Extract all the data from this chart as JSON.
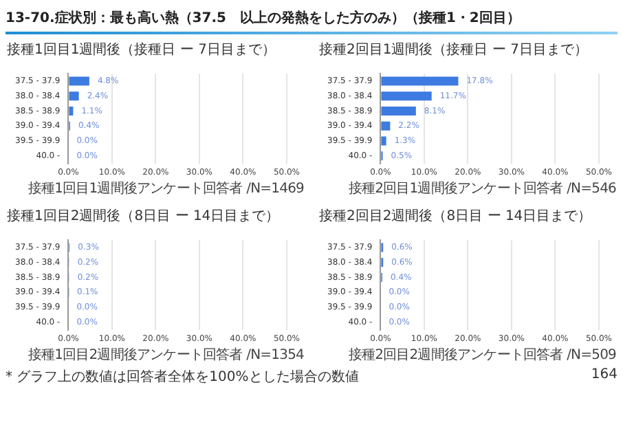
{
  "chart_data": [
    {
      "type": "other",
      "title": "13-70.症状別：最も高い熱（37.5　以上の発熱をした方のみ）（接種1・2回目）",
      "annotations": [
        "* グラフ上の数値は回答者全体を100%とした場合の数値",
        "164"
      ]
    },
    {
      "type": "bar",
      "orientation": "horizontal",
      "title": "接種1回目1週間後（接種日 ー 7日目まで）",
      "categories": [
        "37.5 - 37.9",
        "38.0 - 38.4",
        "38.5 - 38.9",
        "39.0 - 39.4",
        "39.5 - 39.9",
        "40.0 -"
      ],
      "values": [
        4.8,
        2.4,
        1.1,
        0.4,
        0.0,
        0.0
      ],
      "value_labels": [
        "4.8%",
        "2.4%",
        "1.1%",
        "0.4%",
        "0.0%",
        "0.0%"
      ],
      "color": "#3d7be0",
      "xlim": [
        0,
        50
      ],
      "xticks": [
        {
          "value": 0,
          "label": "0.0%"
        },
        {
          "value": 10,
          "label": "10.0%"
        },
        {
          "value": 20,
          "label": "20.0%"
        },
        {
          "value": 30,
          "label": "30.0%"
        },
        {
          "value": 40,
          "label": "40.0%"
        },
        {
          "value": 50,
          "label": "50.0%"
        }
      ],
      "grid": "x",
      "annotations": [
        "接種1回目1週間後アンケート回答者 /N=1469"
      ]
    },
    {
      "type": "bar",
      "orientation": "horizontal",
      "title": "接種2回目1週間後（接種日 ー 7日目まで）",
      "categories": [
        "37.5 - 37.9",
        "38.0 - 38.4",
        "38.5 - 38.9",
        "39.0 - 39.4",
        "39.5 - 39.9",
        "40.0 -"
      ],
      "values": [
        17.8,
        11.7,
        8.1,
        2.2,
        1.3,
        0.5
      ],
      "value_labels": [
        "17.8%",
        "11.7%",
        "8.1%",
        "2.2%",
        "1.3%",
        "0.5%"
      ],
      "color": "#3d7be0",
      "xlim": [
        0,
        50
      ],
      "xticks": [
        {
          "value": 0,
          "label": "0.0%"
        },
        {
          "value": 10,
          "label": "10.0%"
        },
        {
          "value": 20,
          "label": "20.0%"
        },
        {
          "value": 30,
          "label": "30.0%"
        },
        {
          "value": 40,
          "label": "40.0%"
        },
        {
          "value": 50,
          "label": "50.0%"
        }
      ],
      "grid": "x",
      "annotations": [
        "接種2回目1週間後アンケート回答者 /N=546"
      ]
    },
    {
      "type": "bar",
      "orientation": "horizontal",
      "title": "接種1回目2週間後（8日目 ー 14日目まで）",
      "categories": [
        "37.5 - 37.9",
        "38.0 - 38.4",
        "38.5 - 38.9",
        "39.0 - 39.4",
        "39.5 - 39.9",
        "40.0 -"
      ],
      "values": [
        0.3,
        0.2,
        0.2,
        0.1,
        0.0,
        0.0
      ],
      "value_labels": [
        "0.3%",
        "0.2%",
        "0.2%",
        "0.1%",
        "0.0%",
        "0.0%"
      ],
      "color": "#3d7be0",
      "xlim": [
        0,
        50
      ],
      "xticks": [
        {
          "value": 0,
          "label": "0.0%"
        },
        {
          "value": 10,
          "label": "10.0%"
        },
        {
          "value": 20,
          "label": "20.0%"
        },
        {
          "value": 30,
          "label": "30.0%"
        },
        {
          "value": 40,
          "label": "40.0%"
        },
        {
          "value": 50,
          "label": "50.0%"
        }
      ],
      "grid": "x",
      "annotations": [
        "接種1回目2週間後アンケート回答者 /N=1354"
      ]
    },
    {
      "type": "bar",
      "orientation": "horizontal",
      "title": "接種2回目2週間後（8日目 ー 14日目まで）",
      "categories": [
        "37.5 - 37.9",
        "38.0 - 38.4",
        "38.5 - 38.9",
        "39.0 - 39.4",
        "39.5 - 39.9",
        "40.0 -"
      ],
      "values": [
        0.6,
        0.6,
        0.4,
        0.0,
        0.0,
        0.0
      ],
      "value_labels": [
        "0.6%",
        "0.6%",
        "0.4%",
        "0.0%",
        "0.0%",
        "0.0%"
      ],
      "color": "#3d7be0",
      "xlim": [
        0,
        50
      ],
      "xticks": [
        {
          "value": 0,
          "label": "0.0%"
        },
        {
          "value": 10,
          "label": "10.0%"
        },
        {
          "value": 20,
          "label": "20.0%"
        },
        {
          "value": 30,
          "label": "30.0%"
        },
        {
          "value": 40,
          "label": "40.0%"
        },
        {
          "value": 50,
          "label": "50.0%"
        }
      ],
      "grid": "x",
      "annotations": [
        "接種2回目2週間後アンケート回答者 /N=509"
      ]
    }
  ]
}
